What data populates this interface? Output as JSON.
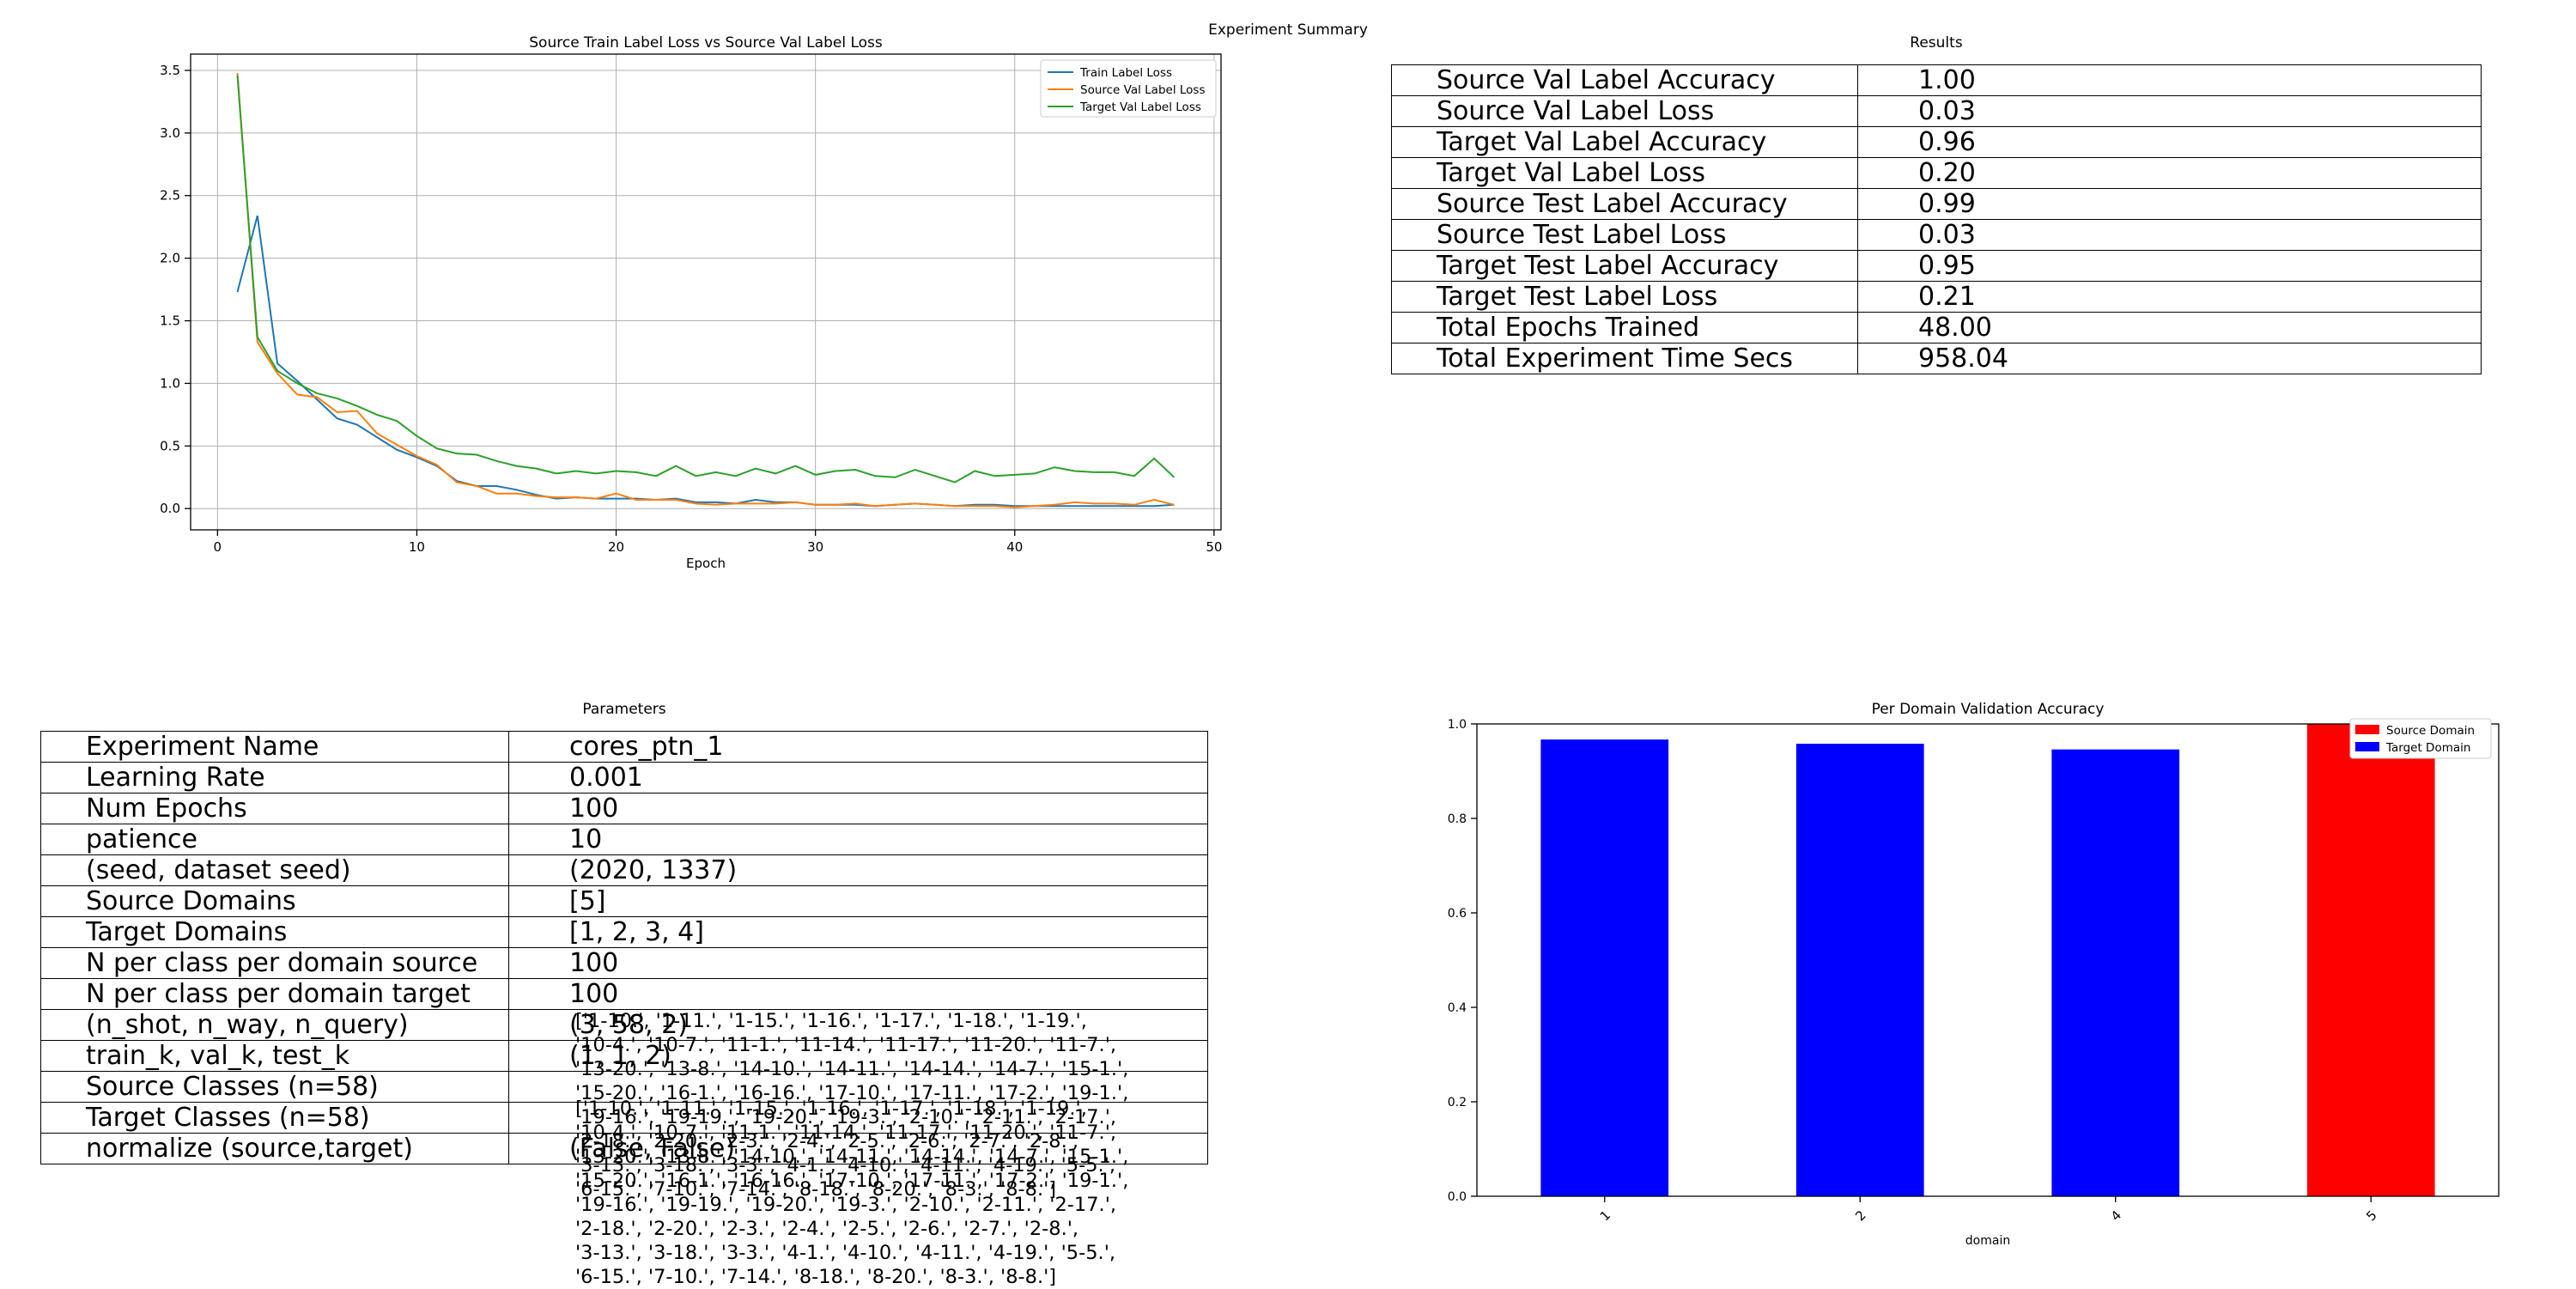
{
  "suptitle": "Experiment Summary",
  "loss_chart": {
    "title": "Source Train Label Loss vs Source Val Label Loss",
    "xlabel": "Epoch",
    "x_ticks": [
      "0",
      "10",
      "20",
      "30",
      "40",
      "50"
    ],
    "y_ticks": [
      "0.0",
      "0.5",
      "1.0",
      "1.5",
      "2.0",
      "2.5",
      "3.0",
      "3.5"
    ],
    "legend": [
      "Train Label Loss",
      "Source Val Label Loss",
      "Target Val Label Loss"
    ],
    "colors": [
      "#1f77b4",
      "#ff7f0e",
      "#2ca02c"
    ]
  },
  "results": {
    "title": "Results",
    "rows": [
      {
        "k": "Source Val Label Accuracy",
        "v": "1.00"
      },
      {
        "k": "Source Val Label Loss",
        "v": "0.03"
      },
      {
        "k": "Target Val Label Accuracy",
        "v": "0.96"
      },
      {
        "k": "Target Val Label Loss",
        "v": "0.20"
      },
      {
        "k": "Source Test Label Accuracy",
        "v": "0.99"
      },
      {
        "k": "Source Test Label Loss",
        "v": "0.03"
      },
      {
        "k": "Target Test Label Accuracy",
        "v": "0.95"
      },
      {
        "k": "Target Test Label Loss",
        "v": "0.21"
      },
      {
        "k": "Total Epochs Trained",
        "v": "48.00"
      },
      {
        "k": "Total Experiment Time Secs",
        "v": "958.04"
      }
    ]
  },
  "parameters": {
    "title": "Parameters",
    "rows": [
      {
        "k": "Experiment Name",
        "v": "cores_ptn_1"
      },
      {
        "k": "Learning Rate",
        "v": "0.001"
      },
      {
        "k": "Num Epochs",
        "v": "100"
      },
      {
        "k": "patience",
        "v": "10"
      },
      {
        "k": "(seed, dataset seed)",
        "v": "(2020, 1337)"
      },
      {
        "k": "Source Domains",
        "v": "[5]"
      },
      {
        "k": "Target Domains",
        "v": "[1, 2, 3, 4]"
      },
      {
        "k": "N per class per domain source",
        "v": "100"
      },
      {
        "k": "N per class per domain target",
        "v": "100"
      },
      {
        "k": "(n_shot, n_way, n_query)",
        "v": "(3, 58, 2)"
      },
      {
        "k": "train_k, val_k, test_k",
        "v": "(1, 1, 2)"
      },
      {
        "k": "Source Classes (n=58)",
        "v": ""
      },
      {
        "k": "Target Classes (n=58)",
        "v": ""
      },
      {
        "k": "normalize (source,target)",
        "v": "(False, False)"
      }
    ],
    "source_classes_lines": [
      "['1-10.', '1-11.', '1-15.', '1-16.', '1-17.', '1-18.', '1-19.',",
      "'10-4.', '10-7.', '11-1.', '11-14.', '11-17.', '11-20.', '11-7.',",
      "'13-20.', '13-8.', '14-10.', '14-11.', '14-14.', '14-7.', '15-1.',",
      "'15-20.', '16-1.', '16-16.', '17-10.', '17-11.', '17-2.', '19-1.',",
      "'19-16.', '19-19.', '19-20.', '19-3.', '2-10.', '2-11.', '2-17.',",
      "'2-18.', '2-20.', '2-3.', '2-4.', '2-5.', '2-6.', '2-7.', '2-8.',",
      "'3-13.', '3-18.', '3-3.', '4-1.', '4-10.', '4-11.', '4-19.', '5-5.',",
      "'6-15.', '7-10.', '7-14.', '8-18.', '8-20.', '8-3.', '8-8.']"
    ],
    "target_classes_lines": [
      "['1-10.', '1-11.', '1-15.', '1-16.', '1-17.', '1-18.', '1-19.',",
      "'10-4.', '10-7.', '11-1.', '11-14.', '11-17.', '11-20.', '11-7.',",
      "'13-20.', '13-8.', '14-10.', '14-11.', '14-14.', '14-7.', '15-1.',",
      "'15-20.', '16-1.', '16-16.', '17-10.', '17-11.', '17-2.', '19-1.',",
      "'19-16.', '19-19.', '19-20.', '19-3.', '2-10.', '2-11.', '2-17.',",
      "'2-18.', '2-20.', '2-3.', '2-4.', '2-5.', '2-6.', '2-7.', '2-8.',",
      "'3-13.', '3-18.', '3-3.', '4-1.', '4-10.', '4-11.', '4-19.', '5-5.',",
      "'6-15.', '7-10.', '7-14.', '8-18.', '8-20.', '8-3.', '8-8.']"
    ]
  },
  "chart_data": [
    {
      "type": "line",
      "title": "Source Train Label Loss vs Source Val Label Loss",
      "xlabel": "Epoch",
      "ylabel": "",
      "xlim": [
        -1.35,
        50.35
      ],
      "ylim": [
        -0.17,
        3.63
      ],
      "grid": true,
      "legend_position": "top-right",
      "x": [
        1,
        2,
        3,
        4,
        5,
        6,
        7,
        8,
        9,
        10,
        11,
        12,
        13,
        14,
        15,
        16,
        17,
        18,
        19,
        20,
        21,
        22,
        23,
        24,
        25,
        26,
        27,
        28,
        29,
        30,
        31,
        32,
        33,
        34,
        35,
        36,
        37,
        38,
        39,
        40,
        41,
        42,
        43,
        44,
        45,
        46,
        47,
        48
      ],
      "series": [
        {
          "name": "Train Label Loss",
          "color": "#1f77b4",
          "values": [
            1.73,
            2.34,
            1.16,
            1.02,
            0.87,
            0.72,
            0.67,
            0.57,
            0.47,
            0.41,
            0.34,
            0.22,
            0.18,
            0.18,
            0.15,
            0.11,
            0.08,
            0.09,
            0.08,
            0.08,
            0.08,
            0.07,
            0.08,
            0.05,
            0.05,
            0.04,
            0.07,
            0.05,
            0.05,
            0.03,
            0.03,
            0.03,
            0.02,
            0.03,
            0.04,
            0.03,
            0.02,
            0.03,
            0.03,
            0.02,
            0.02,
            0.02,
            0.02,
            0.02,
            0.02,
            0.02,
            0.02,
            0.03
          ]
        },
        {
          "name": "Source Val Label Loss",
          "color": "#ff7f0e",
          "values": [
            3.48,
            1.33,
            1.08,
            0.91,
            0.89,
            0.77,
            0.78,
            0.6,
            0.51,
            0.42,
            0.35,
            0.21,
            0.18,
            0.12,
            0.12,
            0.1,
            0.09,
            0.09,
            0.08,
            0.12,
            0.07,
            0.07,
            0.07,
            0.04,
            0.03,
            0.04,
            0.04,
            0.04,
            0.05,
            0.03,
            0.03,
            0.04,
            0.02,
            0.03,
            0.04,
            0.03,
            0.02,
            0.02,
            0.02,
            0.01,
            0.02,
            0.03,
            0.05,
            0.04,
            0.04,
            0.03,
            0.07,
            0.03
          ]
        },
        {
          "name": "Target Val Label Loss",
          "color": "#2ca02c",
          "values": [
            3.46,
            1.37,
            1.1,
            1.0,
            0.92,
            0.88,
            0.82,
            0.75,
            0.7,
            0.58,
            0.48,
            0.44,
            0.43,
            0.38,
            0.34,
            0.32,
            0.28,
            0.3,
            0.28,
            0.3,
            0.29,
            0.26,
            0.34,
            0.26,
            0.29,
            0.26,
            0.32,
            0.28,
            0.34,
            0.27,
            0.3,
            0.31,
            0.26,
            0.25,
            0.31,
            0.26,
            0.21,
            0.3,
            0.26,
            0.27,
            0.28,
            0.33,
            0.3,
            0.29,
            0.29,
            0.26,
            0.4,
            0.25
          ]
        }
      ]
    },
    {
      "type": "bar",
      "title": "Per Domain Validation Accuracy",
      "xlabel": "domain",
      "ylabel": "",
      "categories": [
        "1",
        "2",
        "4",
        "5"
      ],
      "values": [
        0.967,
        0.958,
        0.946,
        1.0
      ],
      "bar_domains": [
        "Target Domain",
        "Target Domain",
        "Target Domain",
        "Source Domain"
      ],
      "ylim": [
        0,
        1.0
      ],
      "y_ticks": [
        "0.0",
        "0.2",
        "0.4",
        "0.6",
        "0.8",
        "1.0"
      ],
      "grid": false,
      "legend_position": "top-right",
      "legend": [
        {
          "name": "Source Domain",
          "color": "#ff0000"
        },
        {
          "name": "Target Domain",
          "color": "#0000ff"
        }
      ]
    }
  ]
}
